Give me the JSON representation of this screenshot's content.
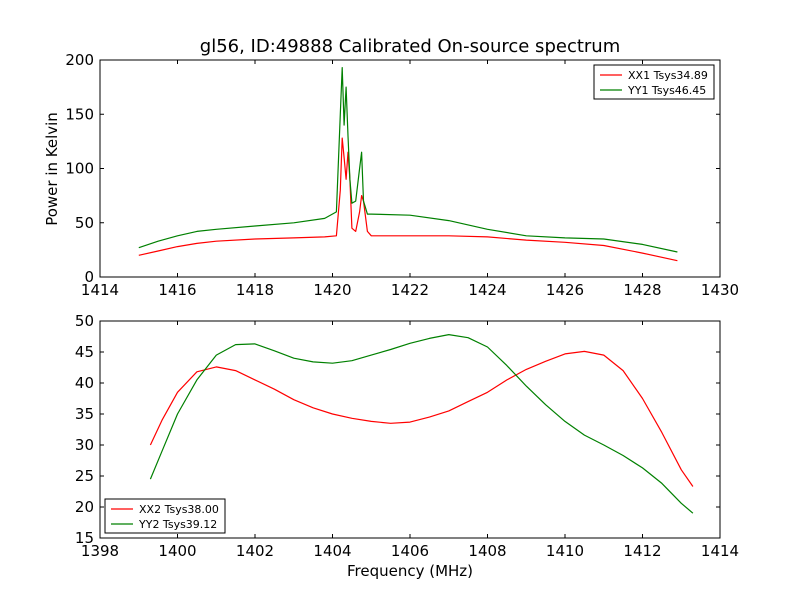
{
  "chart_data": [
    {
      "type": "line",
      "title": "gl56, ID:49888 Calibrated On-source spectrum",
      "xlabel": "",
      "ylabel": "Power in Kelvin",
      "xlim": [
        1414,
        1430
      ],
      "ylim": [
        0,
        200
      ],
      "xticks": [
        "1414",
        "1416",
        "1418",
        "1420",
        "1422",
        "1424",
        "1426",
        "1428",
        "1430"
      ],
      "yticks": [
        "0",
        "50",
        "100",
        "150",
        "200"
      ],
      "grid": false,
      "legend_position": "top-right",
      "series": [
        {
          "name": "XX1 Tsys34.89",
          "color": "#ff0000",
          "x": [
            1415.0,
            1415.5,
            1416.0,
            1416.5,
            1417.0,
            1418.0,
            1419.0,
            1419.8,
            1420.1,
            1420.2,
            1420.25,
            1420.3,
            1420.35,
            1420.4,
            1420.45,
            1420.5,
            1420.6,
            1420.7,
            1420.75,
            1420.8,
            1420.9,
            1421.0,
            1422.0,
            1423.0,
            1424.0,
            1425.0,
            1426.0,
            1427.0,
            1428.0,
            1428.9
          ],
          "values": [
            20,
            24,
            28,
            31,
            33,
            35,
            36,
            37,
            38,
            80,
            128,
            110,
            90,
            115,
            90,
            45,
            42,
            60,
            75,
            70,
            42,
            38,
            38,
            38,
            37,
            34,
            32,
            29,
            22,
            15
          ]
        },
        {
          "name": "YY1 Tsys46.45",
          "color": "#008000",
          "x": [
            1415.0,
            1415.5,
            1416.0,
            1416.5,
            1417.0,
            1418.0,
            1419.0,
            1419.8,
            1420.1,
            1420.2,
            1420.25,
            1420.3,
            1420.35,
            1420.4,
            1420.45,
            1420.5,
            1420.6,
            1420.7,
            1420.75,
            1420.8,
            1420.9,
            1421.0,
            1422.0,
            1423.0,
            1424.0,
            1425.0,
            1426.0,
            1427.0,
            1428.0,
            1428.9
          ],
          "values": [
            27,
            33,
            38,
            42,
            44,
            47,
            50,
            54,
            60,
            150,
            193,
            140,
            175,
            130,
            90,
            68,
            70,
            100,
            115,
            70,
            58,
            58,
            57,
            52,
            44,
            38,
            36,
            35,
            30,
            23
          ]
        }
      ]
    },
    {
      "type": "line",
      "title": "",
      "xlabel": "Frequency (MHz)",
      "ylabel": "",
      "xlim": [
        1398,
        1414
      ],
      "ylim": [
        15,
        50
      ],
      "xticks": [
        "1398",
        "1400",
        "1402",
        "1404",
        "1406",
        "1408",
        "1410",
        "1412",
        "1414"
      ],
      "yticks": [
        "15",
        "20",
        "25",
        "30",
        "35",
        "40",
        "45",
        "50"
      ],
      "grid": false,
      "legend_position": "bottom-left",
      "series": [
        {
          "name": "XX2 Tsys38.00",
          "color": "#ff0000",
          "x": [
            1399.3,
            1399.6,
            1400.0,
            1400.5,
            1401.0,
            1401.5,
            1402.0,
            1402.5,
            1403.0,
            1403.5,
            1404.0,
            1404.5,
            1405.0,
            1405.5,
            1406.0,
            1406.5,
            1407.0,
            1407.5,
            1408.0,
            1408.5,
            1409.0,
            1409.5,
            1410.0,
            1410.5,
            1411.0,
            1411.5,
            1412.0,
            1412.5,
            1413.0,
            1413.3
          ],
          "values": [
            30,
            34,
            38.5,
            41.8,
            42.6,
            42,
            40.5,
            39,
            37.3,
            36,
            35,
            34.3,
            33.8,
            33.5,
            33.7,
            34.5,
            35.5,
            37,
            38.5,
            40.5,
            42.2,
            43.5,
            44.7,
            45.1,
            44.5,
            42,
            37.5,
            32,
            26,
            23.3
          ]
        },
        {
          "name": "YY2 Tsys39.12",
          "color": "#008000",
          "x": [
            1399.3,
            1399.6,
            1400.0,
            1400.5,
            1401.0,
            1401.5,
            1402.0,
            1402.5,
            1403.0,
            1403.5,
            1404.0,
            1404.5,
            1405.0,
            1405.5,
            1406.0,
            1406.5,
            1407.0,
            1407.5,
            1408.0,
            1408.5,
            1409.0,
            1409.5,
            1410.0,
            1410.5,
            1411.0,
            1411.5,
            1412.0,
            1412.5,
            1413.0,
            1413.3
          ],
          "values": [
            24.5,
            29,
            35,
            40.5,
            44.5,
            46.2,
            46.3,
            45.2,
            44,
            43.4,
            43.2,
            43.6,
            44.5,
            45.4,
            46.4,
            47.2,
            47.8,
            47.3,
            45.8,
            42.8,
            39.5,
            36.5,
            33.8,
            31.6,
            30,
            28.3,
            26.3,
            23.8,
            20.6,
            19
          ]
        }
      ]
    }
  ]
}
